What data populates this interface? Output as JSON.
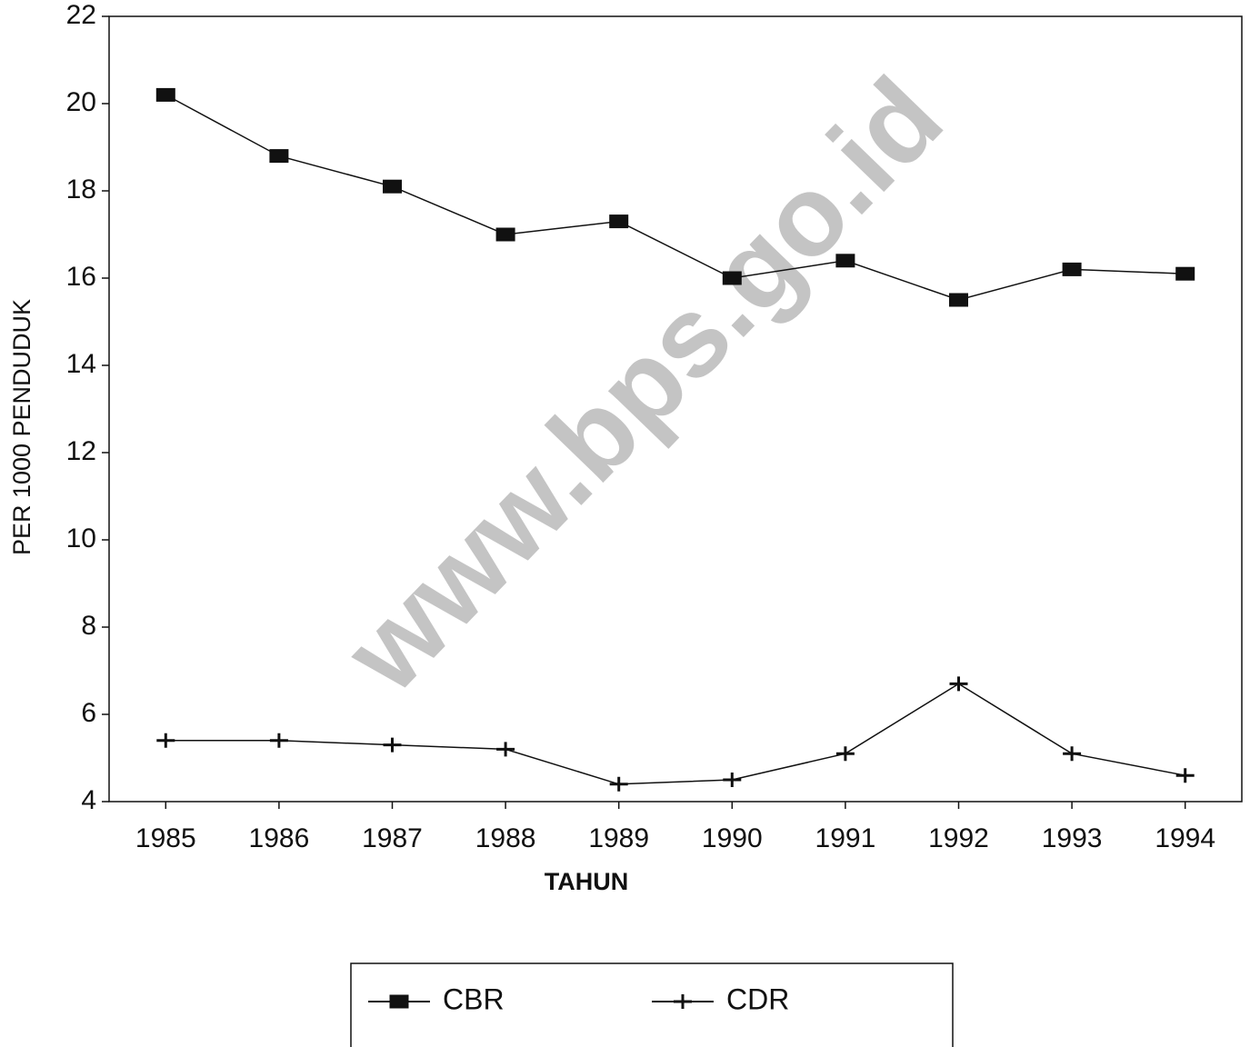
{
  "chart_data": {
    "type": "line",
    "watermark": "www.bps.go.id",
    "xlabel": "TAHUN",
    "ylabel": "PER 1000 PENDUDUK",
    "categories": [
      "1985",
      "1986",
      "1987",
      "1988",
      "1989",
      "1990",
      "1991",
      "1992",
      "1993",
      "1994"
    ],
    "series": [
      {
        "name": "CBR",
        "color": "#111111",
        "marker": "square",
        "values": [
          20.2,
          18.8,
          18.1,
          17.0,
          17.3,
          16.0,
          16.4,
          15.5,
          16.2,
          16.1
        ]
      },
      {
        "name": "CDR",
        "color": "#111111",
        "marker": "plus",
        "values": [
          5.4,
          5.4,
          5.3,
          5.2,
          4.4,
          4.5,
          5.1,
          6.7,
          5.1,
          4.6
        ]
      }
    ],
    "ylim": [
      4,
      22
    ],
    "yticks": [
      4,
      6,
      8,
      10,
      12,
      14,
      16,
      18,
      20,
      22
    ]
  }
}
